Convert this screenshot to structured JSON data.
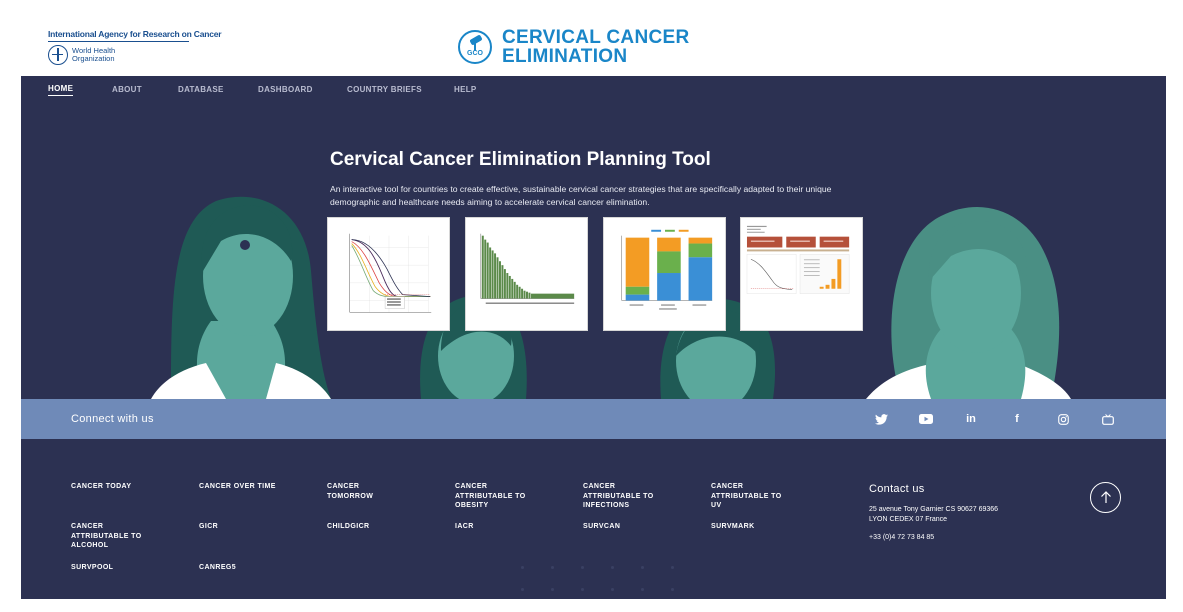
{
  "header": {
    "iarc_name": "International Agency for Research on Cancer",
    "who_name_line1": "World Health",
    "who_name_line2": "Organization",
    "gco_label": "GCO",
    "brand_line1": "CERVICAL CANCER",
    "brand_line2": "ELIMINATION"
  },
  "nav": {
    "items": [
      {
        "label": "HOME",
        "active": true
      },
      {
        "label": "ABOUT"
      },
      {
        "label": "DATABASE"
      },
      {
        "label": "DASHBOARD"
      },
      {
        "label": "COUNTRY BRIEFS"
      },
      {
        "label": "HELP"
      }
    ]
  },
  "hero": {
    "title": "Cervical Cancer Elimination Planning Tool",
    "description": "An interactive tool for countries to create effective, sustainable cervical cancer strategies that are specifically adapted to their unique demographic and healthcare needs aiming to accelerate cervical cancer elimination."
  },
  "connect": {
    "label": "Connect with us",
    "social": [
      "twitter-icon",
      "youtube-icon",
      "linkedin-icon",
      "facebook-icon",
      "instagram-icon",
      "tv-icon"
    ],
    "linkedin_glyph": "in",
    "facebook_glyph": "f"
  },
  "footer": {
    "links": [
      "CANCER TODAY",
      "CANCER OVER TIME",
      "CANCER TOMORROW",
      "CANCER ATTRIBUTABLE TO OBESITY",
      "CANCER ATTRIBUTABLE TO INFECTIONS",
      "CANCER ATTRIBUTABLE TO UV",
      "CANCER ATTRIBUTABLE TO ALCOHOL",
      "GICR",
      "CHILDGICR",
      "IACR",
      "SURVCAN",
      "SURVMARK",
      "SURVPOOL",
      "CANREG5"
    ],
    "contact_title": "Contact us",
    "contact_address_line1": "25 avenue Tony Garnier CS 90627 69366",
    "contact_address_line2": "LYON CEDEX 07 France",
    "contact_phone": "+33 (0)4 72 73 84 85"
  },
  "colors": {
    "navy": "#2c3152",
    "connect_bar": "#6f8ab8",
    "brand_blue": "#1a86c8",
    "figure_teal": "#5ba89c",
    "figure_dark": "#1f5a55"
  }
}
